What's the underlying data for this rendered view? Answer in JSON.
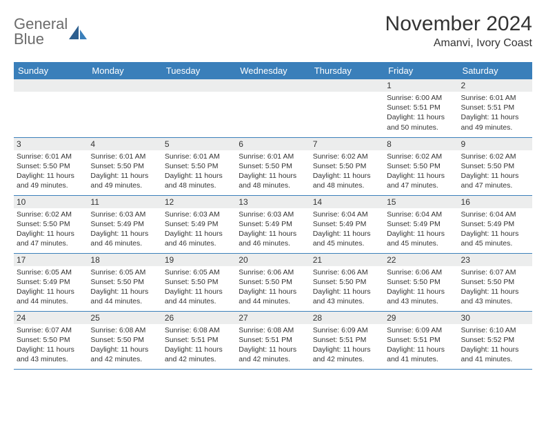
{
  "logo": {
    "line1": "General",
    "line2": "Blue"
  },
  "title": "November 2024",
  "location": "Amanvi, Ivory Coast",
  "colors": {
    "header_bg": "#3a7fba",
    "header_text": "#ffffff",
    "day_num_bg": "#eceded",
    "text": "#333333",
    "logo_gray": "#6b6b6b",
    "logo_blue": "#3a7fba",
    "rule": "#3a7fba"
  },
  "weekdays": [
    "Sunday",
    "Monday",
    "Tuesday",
    "Wednesday",
    "Thursday",
    "Friday",
    "Saturday"
  ],
  "grid": [
    [
      null,
      null,
      null,
      null,
      null,
      {
        "n": "1",
        "sr": "6:00 AM",
        "ss": "5:51 PM",
        "dl": "11 hours and 50 minutes."
      },
      {
        "n": "2",
        "sr": "6:01 AM",
        "ss": "5:51 PM",
        "dl": "11 hours and 49 minutes."
      }
    ],
    [
      {
        "n": "3",
        "sr": "6:01 AM",
        "ss": "5:50 PM",
        "dl": "11 hours and 49 minutes."
      },
      {
        "n": "4",
        "sr": "6:01 AM",
        "ss": "5:50 PM",
        "dl": "11 hours and 49 minutes."
      },
      {
        "n": "5",
        "sr": "6:01 AM",
        "ss": "5:50 PM",
        "dl": "11 hours and 48 minutes."
      },
      {
        "n": "6",
        "sr": "6:01 AM",
        "ss": "5:50 PM",
        "dl": "11 hours and 48 minutes."
      },
      {
        "n": "7",
        "sr": "6:02 AM",
        "ss": "5:50 PM",
        "dl": "11 hours and 48 minutes."
      },
      {
        "n": "8",
        "sr": "6:02 AM",
        "ss": "5:50 PM",
        "dl": "11 hours and 47 minutes."
      },
      {
        "n": "9",
        "sr": "6:02 AM",
        "ss": "5:50 PM",
        "dl": "11 hours and 47 minutes."
      }
    ],
    [
      {
        "n": "10",
        "sr": "6:02 AM",
        "ss": "5:50 PM",
        "dl": "11 hours and 47 minutes."
      },
      {
        "n": "11",
        "sr": "6:03 AM",
        "ss": "5:49 PM",
        "dl": "11 hours and 46 minutes."
      },
      {
        "n": "12",
        "sr": "6:03 AM",
        "ss": "5:49 PM",
        "dl": "11 hours and 46 minutes."
      },
      {
        "n": "13",
        "sr": "6:03 AM",
        "ss": "5:49 PM",
        "dl": "11 hours and 46 minutes."
      },
      {
        "n": "14",
        "sr": "6:04 AM",
        "ss": "5:49 PM",
        "dl": "11 hours and 45 minutes."
      },
      {
        "n": "15",
        "sr": "6:04 AM",
        "ss": "5:49 PM",
        "dl": "11 hours and 45 minutes."
      },
      {
        "n": "16",
        "sr": "6:04 AM",
        "ss": "5:49 PM",
        "dl": "11 hours and 45 minutes."
      }
    ],
    [
      {
        "n": "17",
        "sr": "6:05 AM",
        "ss": "5:49 PM",
        "dl": "11 hours and 44 minutes."
      },
      {
        "n": "18",
        "sr": "6:05 AM",
        "ss": "5:50 PM",
        "dl": "11 hours and 44 minutes."
      },
      {
        "n": "19",
        "sr": "6:05 AM",
        "ss": "5:50 PM",
        "dl": "11 hours and 44 minutes."
      },
      {
        "n": "20",
        "sr": "6:06 AM",
        "ss": "5:50 PM",
        "dl": "11 hours and 44 minutes."
      },
      {
        "n": "21",
        "sr": "6:06 AM",
        "ss": "5:50 PM",
        "dl": "11 hours and 43 minutes."
      },
      {
        "n": "22",
        "sr": "6:06 AM",
        "ss": "5:50 PM",
        "dl": "11 hours and 43 minutes."
      },
      {
        "n": "23",
        "sr": "6:07 AM",
        "ss": "5:50 PM",
        "dl": "11 hours and 43 minutes."
      }
    ],
    [
      {
        "n": "24",
        "sr": "6:07 AM",
        "ss": "5:50 PM",
        "dl": "11 hours and 43 minutes."
      },
      {
        "n": "25",
        "sr": "6:08 AM",
        "ss": "5:50 PM",
        "dl": "11 hours and 42 minutes."
      },
      {
        "n": "26",
        "sr": "6:08 AM",
        "ss": "5:51 PM",
        "dl": "11 hours and 42 minutes."
      },
      {
        "n": "27",
        "sr": "6:08 AM",
        "ss": "5:51 PM",
        "dl": "11 hours and 42 minutes."
      },
      {
        "n": "28",
        "sr": "6:09 AM",
        "ss": "5:51 PM",
        "dl": "11 hours and 42 minutes."
      },
      {
        "n": "29",
        "sr": "6:09 AM",
        "ss": "5:51 PM",
        "dl": "11 hours and 41 minutes."
      },
      {
        "n": "30",
        "sr": "6:10 AM",
        "ss": "5:52 PM",
        "dl": "11 hours and 41 minutes."
      }
    ]
  ],
  "labels": {
    "sunrise": "Sunrise:",
    "sunset": "Sunset:",
    "daylight": "Daylight:"
  }
}
